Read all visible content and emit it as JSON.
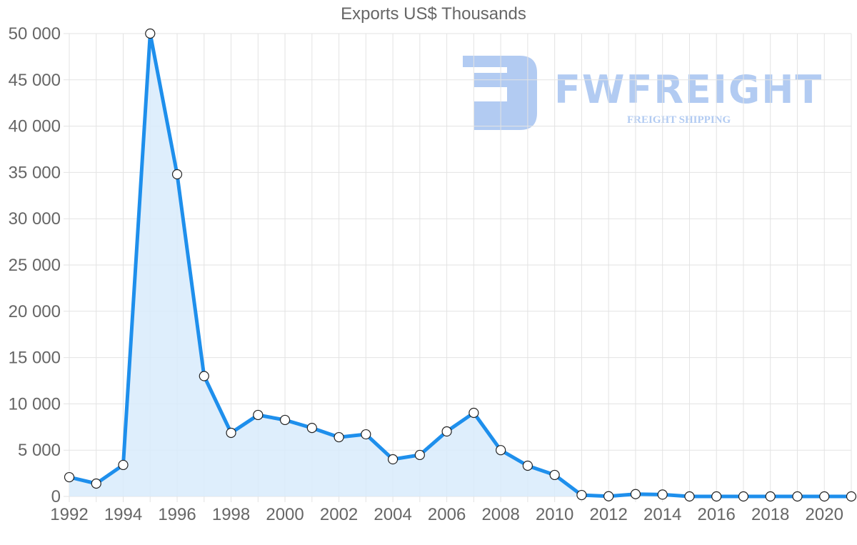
{
  "chart_data": {
    "type": "line",
    "title": "Exports US$ Thousands",
    "xlabel": "",
    "ylabel": "",
    "x": [
      1992,
      1993,
      1994,
      1995,
      1996,
      1997,
      1998,
      1999,
      2000,
      2001,
      2002,
      2003,
      2004,
      2005,
      2006,
      2007,
      2008,
      2009,
      2010,
      2011,
      2012,
      2013,
      2014,
      2015,
      2016,
      2017,
      2018,
      2019,
      2020,
      2021
    ],
    "series": [
      {
        "name": "Exports US$ Thousands",
        "values": [
          2080,
          1390,
          3400,
          50000,
          34800,
          13000,
          6870,
          8800,
          8260,
          7400,
          6400,
          6710,
          4010,
          4480,
          7020,
          9030,
          5000,
          3320,
          2320,
          150,
          20,
          250,
          200,
          0,
          0,
          0,
          0,
          0,
          0,
          0
        ],
        "color": "#1e8fec",
        "fill": "#d8ebfb"
      }
    ],
    "ylim": [
      0,
      50000
    ],
    "yticks": [
      "0",
      "5 000",
      "10 000",
      "15 000",
      "20 000",
      "25 000",
      "30 000",
      "35 000",
      "40 000",
      "45 000",
      "50 000"
    ],
    "xticks": [
      "1992",
      "1994",
      "1996",
      "1998",
      "2000",
      "2002",
      "2004",
      "2006",
      "2008",
      "2010",
      "2012",
      "2014",
      "2016",
      "2018",
      "2020"
    ],
    "grid": true,
    "legend": "none"
  },
  "watermark": {
    "brand": "FWFREIGHT",
    "tagline": "FREIGHT SHIPPING"
  }
}
